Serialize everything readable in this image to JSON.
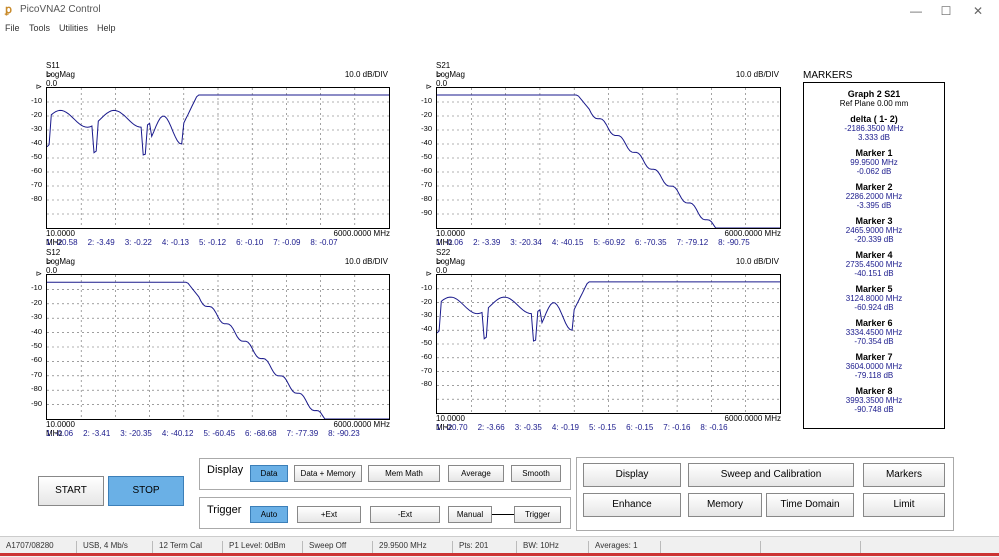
{
  "window": {
    "title": "PicoVNA2 Control",
    "min": "—",
    "max": "☐",
    "close": "✕"
  },
  "menu": [
    "File",
    "Tools",
    "Utilities",
    "Help"
  ],
  "graphs": [
    {
      "id": "s11",
      "title": "S11 LogMag",
      "ref": "⊳ 0.0 dB",
      "scale": "10.0 dB/DIV",
      "start": "10.0000 MHz",
      "stop": "6000.0000 MHz",
      "yticks": [
        "-10",
        "-20",
        "-30",
        "-40",
        "-50",
        "-60",
        "-70",
        "-80"
      ],
      "markers": [
        "1: -20.58",
        "2: -3.49",
        "3: -0.22",
        "4: -0.13",
        "5: -0.12",
        "6: -0.10",
        "7: -0.09",
        "8: -0.07"
      ]
    },
    {
      "id": "s21",
      "title": "S21 LogMag",
      "ref": "⊳ 0.0 dB",
      "scale": "10.0 dB/DIV",
      "start": "10.0000 MHz",
      "stop": "6000.0000 MHz",
      "yticks": [
        "-10",
        "-20",
        "-30",
        "-40",
        "-50",
        "-60",
        "-70",
        "-80",
        "-90"
      ],
      "markers": [
        "1: -0.06",
        "2: -3.39",
        "3: -20.34",
        "4: -40.15",
        "5: -60.92",
        "6: -70.35",
        "7: -79.12",
        "8: -90.75"
      ]
    },
    {
      "id": "s12",
      "title": "S12 LogMag",
      "ref": "⊳ 0.0 dB",
      "scale": "10.0 dB/DIV",
      "start": "10.0000 MHz",
      "stop": "6000.0000 MHz",
      "yticks": [
        "-10",
        "-20",
        "-30",
        "-40",
        "-50",
        "-60",
        "-70",
        "-80",
        "-90"
      ],
      "markers": [
        "1: -0.06",
        "2: -3.41",
        "3: -20.35",
        "4: -40.12",
        "5: -60.45",
        "6: -68.68",
        "7: -77.39",
        "8: -90.23"
      ]
    },
    {
      "id": "s22",
      "title": "S22 LogMag",
      "ref": "⊳ 0.0 dB",
      "scale": "10.0 dB/DIV",
      "start": "10.0000 MHz",
      "stop": "6000.0000 MHz",
      "yticks": [
        "-10",
        "-20",
        "-30",
        "-40",
        "-50",
        "-60",
        "-70",
        "-80"
      ],
      "markers": [
        "1: -20.70",
        "2: -3.66",
        "3: -0.35",
        "4: -0.19",
        "5: -0.15",
        "6: -0.15",
        "7: -0.16",
        "8: -0.16"
      ]
    }
  ],
  "markers_panel": {
    "title": "MARKERS",
    "graph": "Graph 2 S21",
    "ref_plane": "Ref Plane 0.00 mm",
    "delta": {
      "label": "delta ( 1- 2)",
      "freq": "-2186.3500 MHz",
      "db": "3.333 dB"
    },
    "list": [
      {
        "label": "Marker  1",
        "freq": "99.9500 MHz",
        "db": "-0.062 dB"
      },
      {
        "label": "Marker  2",
        "freq": "2286.2000 MHz",
        "db": "-3.395 dB"
      },
      {
        "label": "Marker  3",
        "freq": "2465.9000 MHz",
        "db": "-20.339 dB"
      },
      {
        "label": "Marker  4",
        "freq": "2735.4500 MHz",
        "db": "-40.151 dB"
      },
      {
        "label": "Marker  5",
        "freq": "3124.8000 MHz",
        "db": "-60.924 dB"
      },
      {
        "label": "Marker  6",
        "freq": "3334.4500 MHz",
        "db": "-70.354 dB"
      },
      {
        "label": "Marker  7",
        "freq": "3604.0000 MHz",
        "db": "-79.118 dB"
      },
      {
        "label": "Marker  8",
        "freq": "3993.3500 MHz",
        "db": "-90.748 dB"
      }
    ]
  },
  "controls": {
    "start": "START",
    "stop": "STOP",
    "display_label": "Display",
    "trigger_label": "Trigger",
    "display_buttons": [
      "Data",
      "Data + Memory",
      "Mem Math",
      "Average",
      "Smooth"
    ],
    "trigger_buttons": [
      "Auto",
      "+Ext",
      "-Ext",
      "Manual",
      "Trigger"
    ],
    "right_buttons": [
      "Display",
      "Sweep and Calibration",
      "Markers",
      "Enhance",
      "Memory",
      "Time Domain",
      "Limit"
    ]
  },
  "status": [
    "A1707/08280",
    "USB, 4 Mb/s",
    "12 Term Cal",
    "P1 Level: 0dBm",
    "Sweep Off",
    "29.9500 MHz",
    "Pts: 201",
    "BW: 10Hz",
    "Averages: 1"
  ],
  "colors": {
    "trace": "#1a1a8c",
    "active_button": "#6ab0e6"
  }
}
